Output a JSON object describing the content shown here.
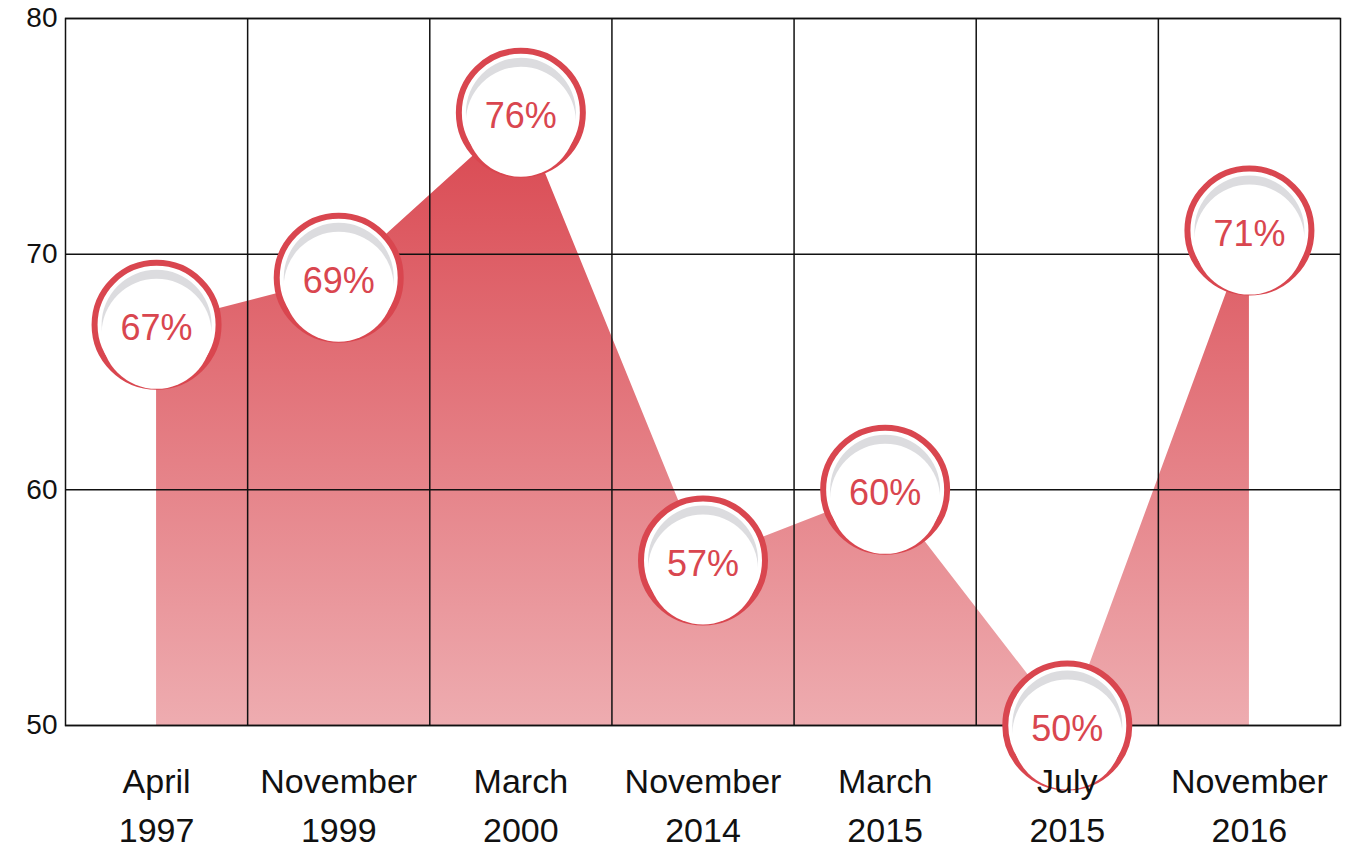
{
  "chart_data": {
    "type": "area",
    "categories": [
      "April 1997",
      "November 1999",
      "March 2000",
      "November 2014",
      "March 2015",
      "July 2015",
      "November 2016"
    ],
    "values": [
      67,
      69,
      76,
      57,
      60,
      50,
      71
    ],
    "value_labels": [
      "67%",
      "69%",
      "76%",
      "57%",
      "60%",
      "50%",
      "71%"
    ],
    "color": "#d9464f",
    "ylim": [
      50,
      80
    ],
    "yticks": [
      50,
      60,
      70,
      80
    ],
    "grid": true,
    "data_labels": true,
    "marker": "circle"
  }
}
